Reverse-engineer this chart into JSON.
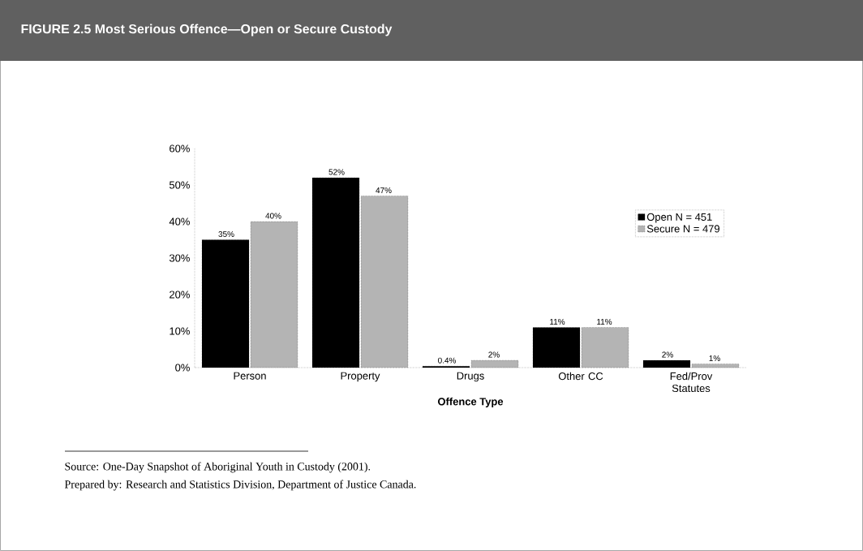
{
  "chart_data": {
    "type": "bar",
    "title": "FIGURE 2.5 Most Serious Offence—Open or Secure Custody",
    "xlabel": "Offence Type",
    "categories": [
      "Person",
      "Property",
      "Drugs",
      "Other CC",
      "Fed/Prov Statutes"
    ],
    "series": [
      {
        "name": "Open N = 451",
        "color": "#000000",
        "values": [
          35,
          52,
          0.4,
          11,
          2
        ],
        "value_labels": [
          "35%",
          "52%",
          "0.4%",
          "11%",
          "2%"
        ]
      },
      {
        "name": "Secure N = 479",
        "color": "#b4b4b4",
        "values": [
          40,
          47,
          2,
          11,
          1
        ],
        "value_labels": [
          "40%",
          "47%",
          "2%",
          "11%",
          "1%"
        ]
      }
    ],
    "ylim": [
      0,
      60
    ],
    "yticks": [
      {
        "value": 0,
        "label": "0%"
      },
      {
        "value": 10,
        "label": "10%"
      },
      {
        "value": 20,
        "label": "20%"
      },
      {
        "value": 30,
        "label": "30%"
      },
      {
        "value": 40,
        "label": "40%"
      },
      {
        "value": 50,
        "label": "50%"
      },
      {
        "value": 60,
        "label": "60%"
      }
    ],
    "grid": false,
    "legend": "top right",
    "annotations": [
      "Source: One-Day Snapshot of Aboriginal Youth in Custody (2001).",
      "Prepared by: Research and Statistics Division, Department of Justice Canada."
    ]
  }
}
